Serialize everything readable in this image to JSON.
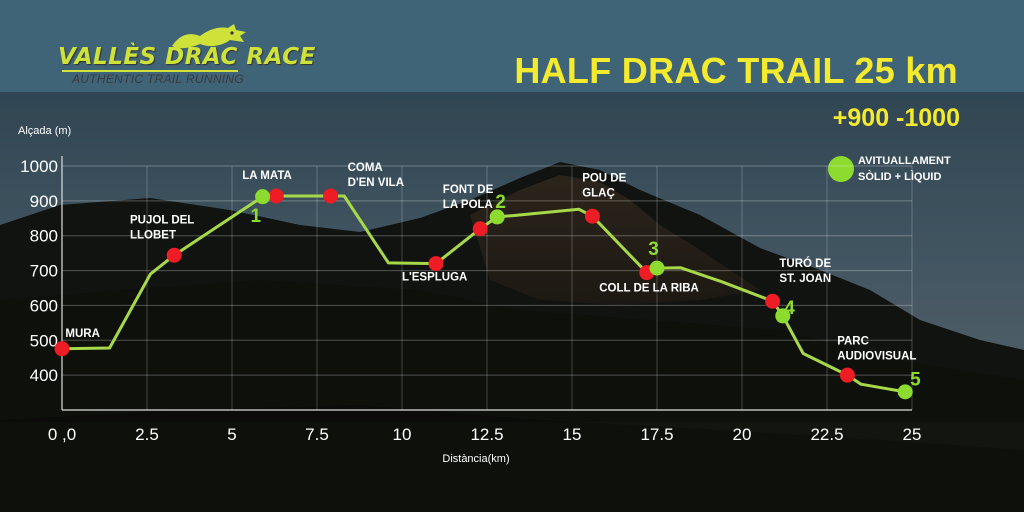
{
  "brand": {
    "name": "VALLÈS DRAC RACE",
    "tagline": "AUTHENTIC TRAIL RUNNING"
  },
  "header": {
    "title": "HALF DRAC TRAIL 25 km",
    "elevation_gain": "+900  -1000"
  },
  "legend": {
    "line1": "AVITUALLAMENT",
    "line2": "SÒLID + LÌQUID",
    "color": "#8edb2f"
  },
  "colors": {
    "profile_line": "#a6d84a",
    "checkpoint": "#ee1c24",
    "aid_station": "#8edb2f",
    "text_title": "#f4ea2e"
  },
  "chart_data": {
    "type": "line",
    "title": "HALF DRAC TRAIL 25 km",
    "xlabel": "Distància(km)",
    "ylabel": "Alçada (m)",
    "xlim": [
      0,
      25
    ],
    "ylim": [
      300,
      1000
    ],
    "x_ticks": [
      {
        "v": 0,
        "label": "0 ,0"
      },
      {
        "v": 2.5,
        "label": "2.5"
      },
      {
        "v": 5,
        "label": "5"
      },
      {
        "v": 7.5,
        "label": "7.5"
      },
      {
        "v": 10,
        "label": "10"
      },
      {
        "v": 12.5,
        "label": "12.5"
      },
      {
        "v": 15,
        "label": "15"
      },
      {
        "v": 17.5,
        "label": "17.5"
      },
      {
        "v": 20,
        "label": "20"
      },
      {
        "v": 22.5,
        "label": "22.5"
      },
      {
        "v": 25,
        "label": "25"
      }
    ],
    "y_ticks": [
      {
        "v": 400,
        "label": "400"
      },
      {
        "v": 500,
        "label": "500"
      },
      {
        "v": 600,
        "label": "600"
      },
      {
        "v": 700,
        "label": "700"
      },
      {
        "v": 800,
        "label": "800"
      },
      {
        "v": 900,
        "label": "900"
      },
      {
        "v": 1000,
        "label": "1000"
      }
    ],
    "grid": true,
    "profile": [
      {
        "x": 0,
        "y": 476
      },
      {
        "x": 1.4,
        "y": 478
      },
      {
        "x": 2.6,
        "y": 690
      },
      {
        "x": 3.3,
        "y": 744
      },
      {
        "x": 5.9,
        "y": 912
      },
      {
        "x": 6.3,
        "y": 914
      },
      {
        "x": 7.9,
        "y": 914
      },
      {
        "x": 8.3,
        "y": 914
      },
      {
        "x": 9.6,
        "y": 722
      },
      {
        "x": 11.0,
        "y": 720
      },
      {
        "x": 12.3,
        "y": 820
      },
      {
        "x": 12.8,
        "y": 854
      },
      {
        "x": 13.3,
        "y": 858
      },
      {
        "x": 15.2,
        "y": 876
      },
      {
        "x": 15.6,
        "y": 856
      },
      {
        "x": 17.2,
        "y": 694
      },
      {
        "x": 17.5,
        "y": 707
      },
      {
        "x": 18.2,
        "y": 708
      },
      {
        "x": 19.4,
        "y": 668
      },
      {
        "x": 20.9,
        "y": 612
      },
      {
        "x": 21.2,
        "y": 570
      },
      {
        "x": 21.8,
        "y": 462
      },
      {
        "x": 23.1,
        "y": 400
      },
      {
        "x": 23.5,
        "y": 374
      },
      {
        "x": 24.8,
        "y": 352
      }
    ],
    "checkpoints": [
      {
        "x": 0,
        "y": 476,
        "label": [
          "MURA"
        ],
        "lx": 0.1,
        "ly": 510,
        "anchor": "start"
      },
      {
        "x": 3.3,
        "y": 744,
        "label": [
          "PUJOL DEL",
          "LLOBET"
        ],
        "lx": 2.0,
        "ly": 835,
        "anchor": "start"
      },
      {
        "x": 6.3,
        "y": 914,
        "label": [
          "LA MATA"
        ],
        "lx": 5.3,
        "ly": 962,
        "anchor": "start"
      },
      {
        "x": 7.9,
        "y": 914,
        "label": [
          "COMA",
          "D'EN VILA"
        ],
        "lx": 8.4,
        "ly": 985,
        "anchor": "start"
      },
      {
        "x": 11.0,
        "y": 720,
        "label": [
          "L'ESPLUGA"
        ],
        "lx": 10.0,
        "ly": 672,
        "anchor": "start"
      },
      {
        "x": 12.3,
        "y": 820,
        "label": [
          "FONT DE",
          "LA POLA"
        ],
        "lx": 11.2,
        "ly": 922,
        "anchor": "start"
      },
      {
        "x": 15.6,
        "y": 856,
        "label": [
          "POU DE",
          "GLAÇ"
        ],
        "lx": 15.3,
        "ly": 955,
        "anchor": "start"
      },
      {
        "x": 17.2,
        "y": 694,
        "label": [
          "COLL DE LA RIBA"
        ],
        "lx": 15.8,
        "ly": 640,
        "anchor": "start"
      },
      {
        "x": 20.9,
        "y": 612,
        "label": [
          "TURÓ DE",
          "ST. JOAN"
        ],
        "lx": 21.1,
        "ly": 710,
        "anchor": "start"
      },
      {
        "x": 23.1,
        "y": 400,
        "label": [
          "PARC",
          "AUDIOVISUAL"
        ],
        "lx": 22.8,
        "ly": 488,
        "anchor": "start"
      }
    ],
    "aid_stations": [
      {
        "x": 5.9,
        "y": 912,
        "num": "1",
        "nx": 5.7,
        "ny": 840
      },
      {
        "x": 12.8,
        "y": 854,
        "num": "2",
        "nx": 12.9,
        "ny": 880
      },
      {
        "x": 17.5,
        "y": 707,
        "num": "3",
        "nx": 17.4,
        "ny": 745
      },
      {
        "x": 21.2,
        "y": 570,
        "num": "4",
        "nx": 21.4,
        "ny": 575
      },
      {
        "x": 24.8,
        "y": 352,
        "num": "5",
        "nx": 25.1,
        "ny": 370
      }
    ]
  }
}
